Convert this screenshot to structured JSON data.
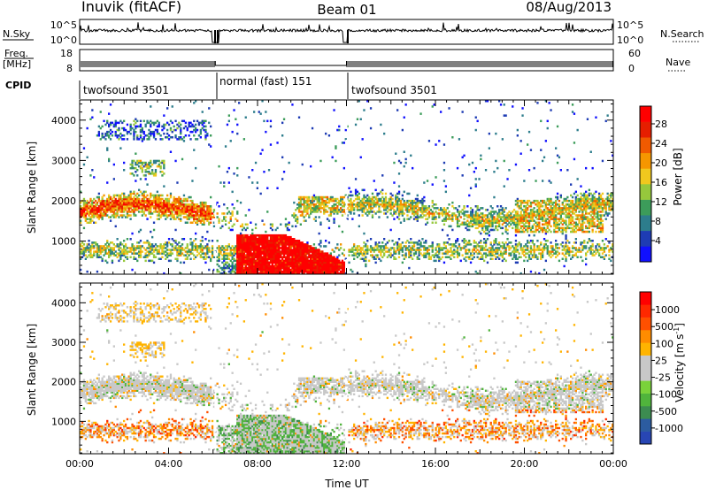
{
  "header": {
    "station": "Inuvik (fitACF)",
    "beam": "Beam 01",
    "date": "08/Aug/2013"
  },
  "side_labels": {
    "nsky": "N.Sky",
    "freq_line1": "Freq.",
    "freq_line2": "[MHz]",
    "cpid": "CPID",
    "nsearch": "N.Search",
    "nave": "Nave"
  },
  "chart_data": [
    {
      "type": "line",
      "panel": "noise",
      "left_ticks": [
        "10^5",
        "10^0"
      ],
      "right_ticks": [
        "10^5",
        "10^0"
      ],
      "left_label": "N.Sky",
      "right_label": "N.Search"
    },
    {
      "type": "line",
      "panel": "frequency",
      "ylabel": "Freq. [MHz]",
      "ylim": [
        8,
        18
      ],
      "left_ticks": [
        "18",
        "8"
      ],
      "right_ticks": [
        "60",
        "0"
      ],
      "right_label": "Nave",
      "xlim": [
        0,
        24
      ],
      "segments_low_freq_hours": [
        [
          0,
          6.1
        ],
        [
          12.0,
          24
        ]
      ],
      "segments_high_hours": [
        [
          6.1,
          12.0
        ]
      ]
    },
    {
      "type": "table",
      "panel": "cpid",
      "label": "CPID",
      "modes": [
        {
          "name": "twofsound 3501",
          "start": 0,
          "end": 6.1
        },
        {
          "name": "normal (fast) 151",
          "start": 6.1,
          "end": 12.0
        },
        {
          "name": "twofsound 3501",
          "start": 12.0,
          "end": 24
        }
      ]
    },
    {
      "type": "heatmap",
      "panel": "power",
      "ylabel": "Slant Range [km]",
      "xlim": [
        0,
        24
      ],
      "ylim": [
        180,
        4500
      ],
      "yticks": [
        1000,
        2000,
        3000,
        4000
      ],
      "colorbar": {
        "label": "Power [dB]",
        "ticks": [
          "4",
          "8",
          "12",
          "16",
          "20",
          "24",
          "28"
        ],
        "colors": [
          "#1010ff",
          "#1e3cb4",
          "#2d7d8c",
          "#3c9c5a",
          "#96c83c",
          "#f0c81e",
          "#f59600",
          "#f05a00",
          "#e61e00",
          "#ff0000"
        ]
      }
    },
    {
      "type": "heatmap",
      "panel": "velocity",
      "ylabel": "Slant Range [km]",
      "xlabel": "Time UT",
      "xlim": [
        0,
        24
      ],
      "ylim": [
        180,
        4500
      ],
      "yticks": [
        1000,
        2000,
        3000,
        4000
      ],
      "xticks": [
        "00:00",
        "04:00",
        "08:00",
        "12:00",
        "16:00",
        "20:00",
        "00:00"
      ],
      "xtick_hours": [
        0,
        4,
        8,
        12,
        16,
        20,
        24
      ],
      "colorbar": {
        "label": "Velocity [m s",
        "label_superscript": "-1",
        "label_end": "]",
        "ticks": [
          "1000",
          "500",
          "100",
          "25",
          "-25",
          "-100",
          "-500",
          "-1000"
        ],
        "colors": [
          "#2846b4",
          "#2c5ca0",
          "#3c8c50",
          "#50b43c",
          "#7ad23a",
          "#c8c8c8",
          "#c8c8c8",
          "#ffb400",
          "#ff8c00",
          "#ff5000",
          "#ff2800",
          "#ff0000"
        ]
      }
    }
  ]
}
